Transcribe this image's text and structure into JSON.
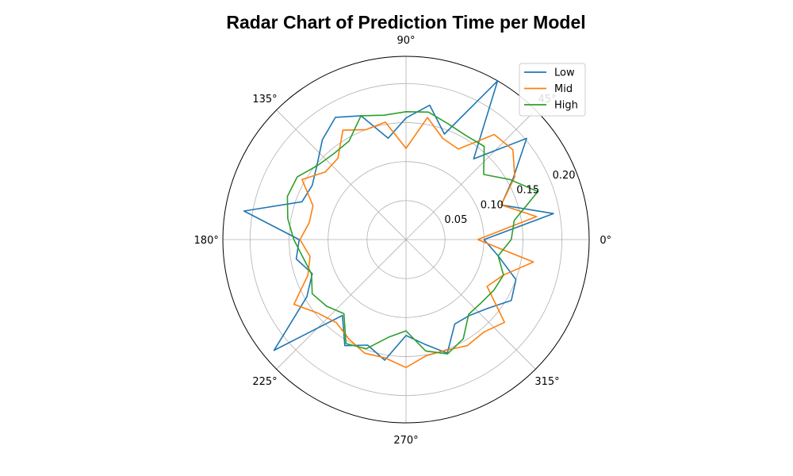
{
  "chart_data": {
    "type": "radar",
    "title": "Radar Chart of Prediction Time per Model",
    "theta_unit": "degrees",
    "theta_ticks": [
      "0°",
      "45°",
      "90°",
      "135°",
      "180°",
      "225°",
      "270°",
      "315°"
    ],
    "theta_values": [
      0,
      10,
      20,
      30,
      40,
      50,
      60,
      70,
      80,
      90,
      100,
      110,
      120,
      130,
      140,
      150,
      160,
      170,
      180,
      190,
      200,
      210,
      220,
      230,
      240,
      250,
      260,
      270,
      280,
      290,
      300,
      310,
      320,
      330,
      340,
      350
    ],
    "r_ticks": [
      0.05,
      0.1,
      0.15,
      0.2
    ],
    "r_tick_labels": [
      "0.05",
      "0.10",
      "0.15",
      "0.20"
    ],
    "rlim": [
      0,
      0.235
    ],
    "grid": true,
    "legend_position": "top-right",
    "series": [
      {
        "name": "Low",
        "color": "#1f77b4",
        "values": [
          0.1,
          0.192,
          0.13,
          0.159,
          0.202,
          0.135,
          0.235,
          0.144,
          0.175,
          0.156,
          0.132,
          0.169,
          0.181,
          0.167,
          0.149,
          0.139,
          0.142,
          0.211,
          0.137,
          0.143,
          0.128,
          0.147,
          0.221,
          0.127,
          0.157,
          0.144,
          0.157,
          0.123,
          0.136,
          0.155,
          0.125,
          0.127,
          0.137,
          0.156,
          0.15,
          0.12
        ]
      },
      {
        "name": "Mid",
        "color": "#ff7f0e",
        "values": [
          0.092,
          0.17,
          0.13,
          0.161,
          0.179,
          0.176,
          0.134,
          0.138,
          0.159,
          0.117,
          0.153,
          0.15,
          0.162,
          0.136,
          0.135,
          0.154,
          0.127,
          0.126,
          0.136,
          0.125,
          0.134,
          0.166,
          0.147,
          0.139,
          0.147,
          0.155,
          0.154,
          0.164,
          0.151,
          0.151,
          0.157,
          0.155,
          0.165,
          0.12,
          0.133,
          0.166
        ]
      },
      {
        "name": "High",
        "color": "#2ca02c",
        "values": [
          0.135,
          0.141,
          0.18,
          0.154,
          0.13,
          0.156,
          0.154,
          0.158,
          0.166,
          0.164,
          0.162,
          0.169,
          0.146,
          0.144,
          0.148,
          0.161,
          0.162,
          0.154,
          0.144,
          0.134,
          0.129,
          0.139,
          0.133,
          0.124,
          0.154,
          0.149,
          0.127,
          0.117,
          0.145,
          0.156,
          0.147,
          0.125,
          0.126,
          0.13,
          0.133,
          0.12
        ]
      }
    ]
  }
}
